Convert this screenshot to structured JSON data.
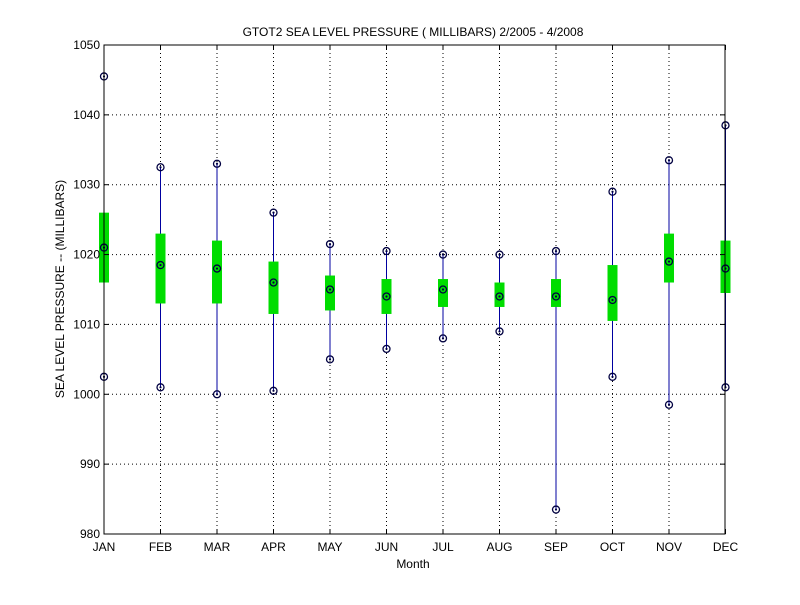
{
  "chart_data": {
    "type": "box",
    "title": "GTOT2  SEA LEVEL PRESSURE ( MILLIBARS) 2/2005 - 4/2008",
    "xlabel": "Month",
    "ylabel": "SEA LEVEL PRESSURE -- (MILLIBARS)",
    "categories": [
      "JAN",
      "FEB",
      "MAR",
      "APR",
      "MAY",
      "JUN",
      "JUL",
      "AUG",
      "SEP",
      "OCT",
      "NOV",
      "DEC"
    ],
    "ylim": [
      980,
      1050
    ],
    "yticks": [
      980,
      990,
      1000,
      1010,
      1020,
      1030,
      1040,
      1050
    ],
    "grid": true,
    "series": [
      {
        "min": 1002.5,
        "q1": 1016.0,
        "median": 1021.0,
        "q3": 1026.0,
        "max": 1045.5
      },
      {
        "min": 1001.0,
        "q1": 1013.0,
        "median": 1018.5,
        "q3": 1023.0,
        "max": 1032.5
      },
      {
        "min": 1000.0,
        "q1": 1013.0,
        "median": 1018.0,
        "q3": 1022.0,
        "max": 1033.0
      },
      {
        "min": 1000.5,
        "q1": 1011.5,
        "median": 1016.0,
        "q3": 1019.0,
        "max": 1026.0
      },
      {
        "min": 1005.0,
        "q1": 1012.0,
        "median": 1015.0,
        "q3": 1017.0,
        "max": 1021.5
      },
      {
        "min": 1006.5,
        "q1": 1011.5,
        "median": 1014.0,
        "q3": 1016.5,
        "max": 1020.5
      },
      {
        "min": 1008.0,
        "q1": 1012.5,
        "median": 1015.0,
        "q3": 1016.5,
        "max": 1020.0
      },
      {
        "min": 1009.0,
        "q1": 1012.5,
        "median": 1014.0,
        "q3": 1016.0,
        "max": 1020.0
      },
      {
        "min": 983.5,
        "q1": 1012.5,
        "median": 1014.0,
        "q3": 1016.5,
        "max": 1020.5
      },
      {
        "min": 1002.5,
        "q1": 1010.5,
        "median": 1013.5,
        "q3": 1018.5,
        "max": 1029.0
      },
      {
        "min": 998.5,
        "q1": 1016.0,
        "median": 1019.0,
        "q3": 1023.0,
        "max": 1033.5
      },
      {
        "min": 1001.0,
        "q1": 1014.5,
        "median": 1018.0,
        "q3": 1022.0,
        "max": 1038.5
      }
    ],
    "colors": {
      "whisker": "#0000a0",
      "box": "#00dd00",
      "marker": "#000040",
      "grid": "#000000",
      "axis": "#000000"
    }
  }
}
